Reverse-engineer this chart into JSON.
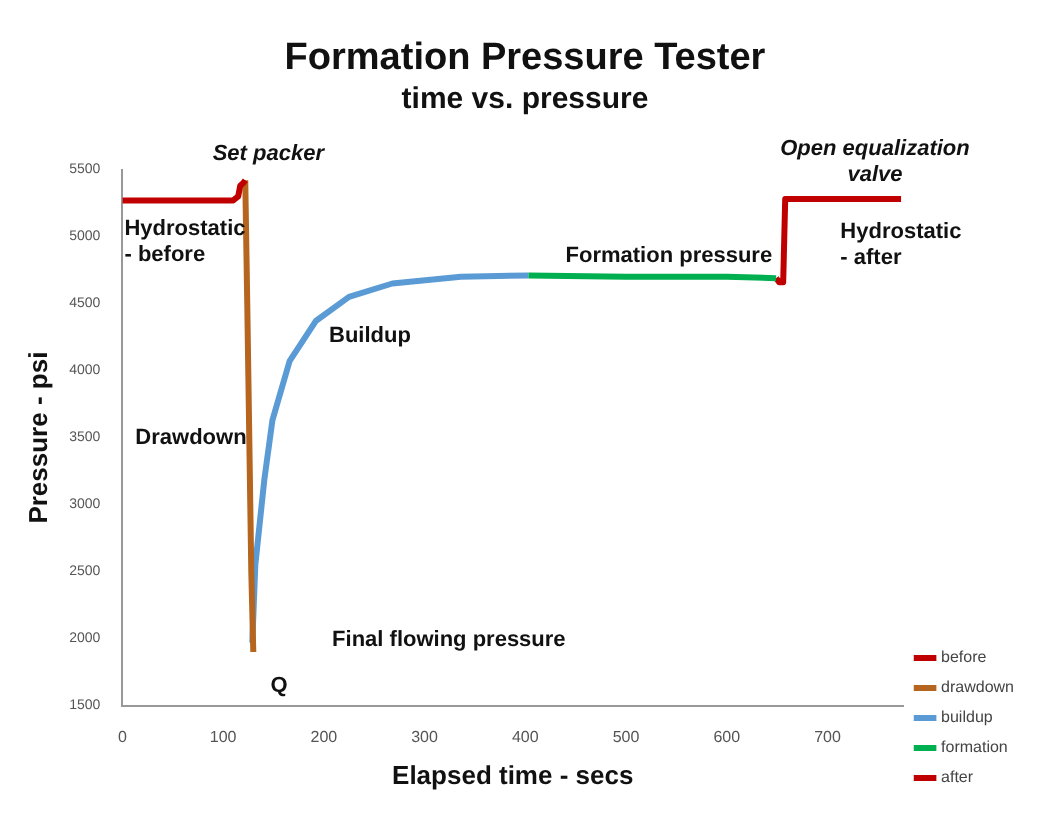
{
  "chart_data": {
    "type": "line",
    "title": "Formation Pressure Tester",
    "subtitle": "time vs. pressure",
    "xlabel": "Elapsed time - secs",
    "ylabel": "Pressure - psi",
    "xlim": [
      0,
      775
    ],
    "xticks": [
      0,
      100,
      200,
      300,
      400,
      500,
      600,
      700
    ],
    "ylim": [
      1500,
      5500
    ],
    "yticks": [
      1500,
      2000,
      2500,
      3000,
      3500,
      4000,
      4500,
      5000,
      5500
    ],
    "grid": false,
    "legend": "right",
    "marker": "none",
    "line_style": "solid",
    "series": [
      {
        "name": "before",
        "color": "#c00000",
        "x": [
          0,
          110,
          115,
          117,
          120,
          122
        ],
        "values": [
          5270,
          5270,
          5300,
          5380,
          5400,
          5420
        ]
      },
      {
        "name": "drawdown",
        "color": "#b5651d",
        "x": [
          122,
          124,
          126,
          128,
          130
        ],
        "values": [
          5420,
          4500,
          3500,
          2500,
          1900
        ]
      },
      {
        "name": "buildup",
        "color": "#5b9bd5",
        "x": [
          129,
          132,
          141,
          149,
          166,
          192,
          225,
          268,
          336,
          403
        ],
        "values": [
          1970,
          2550,
          3190,
          3630,
          4070,
          4370,
          4550,
          4650,
          4700,
          4710
        ]
      },
      {
        "name": "formation",
        "color": "#00b050",
        "x": [
          403,
          500,
          600,
          649
        ],
        "values": [
          4710,
          4700,
          4700,
          4690
        ]
      },
      {
        "name": "after",
        "color": "#c00000",
        "x": [
          649,
          652,
          656,
          658,
          700,
          773
        ],
        "values": [
          4690,
          4660,
          4660,
          5280,
          5280,
          5280
        ]
      }
    ],
    "annotations": [
      "Set packer",
      "Open equalization valve",
      "Hydrostatic - before",
      "Drawdown",
      "Buildup",
      "Final flowing pressure",
      "Formation pressure",
      "Hydrostatic - after",
      "Q"
    ]
  }
}
